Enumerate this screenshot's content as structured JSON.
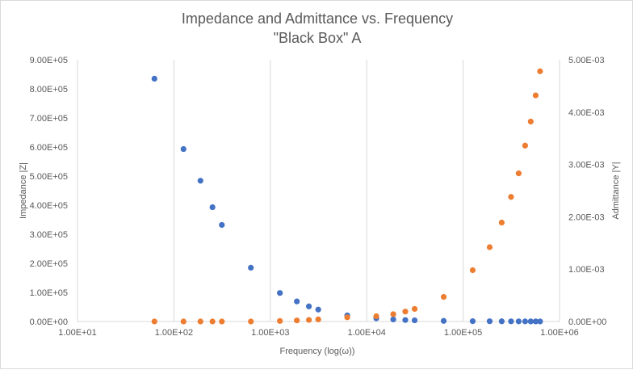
{
  "chart_data": {
    "type": "scatter",
    "title": "Impedance and Admittance vs. Frequency",
    "subtitle": "\"Black Box\" A",
    "xlabel": "Frequency  (log(ω))",
    "ylabel": "Impedance |Z|",
    "y2label": "Admittance |Y|",
    "xscale": "log",
    "xlim": [
      10,
      1000000
    ],
    "ylim": [
      0,
      900000
    ],
    "y2lim": [
      0,
      0.005
    ],
    "xticks": [
      "1.00E+01",
      "1.00E+02",
      "1.00E+03",
      "1.00E+04",
      "1.00E+05",
      "1.00E+06"
    ],
    "yticks": [
      "0.00E+00",
      "1.00E+05",
      "2.00E+05",
      "3.00E+05",
      "4.00E+05",
      "5.00E+05",
      "6.00E+05",
      "7.00E+05",
      "8.00E+05",
      "9.00E+05"
    ],
    "y2ticks": [
      "0.00E+00",
      "1.00E-03",
      "2.00E-03",
      "3.00E-03",
      "4.00E-03",
      "5.00E-03"
    ],
    "grid": "vertical",
    "legend": "none",
    "series": [
      {
        "axis": "left",
        "color": "#4472C4",
        "x": [
          62.8,
          125.7,
          188.5,
          251.3,
          314.2,
          628.3,
          1257,
          1885,
          2513,
          3142,
          6283,
          12566,
          18850,
          25133,
          31416,
          62832,
          125664,
          188496,
          251327,
          314159,
          376991,
          439823,
          502655,
          565487,
          628319
        ],
        "values": [
          835000,
          593000,
          484000,
          393000,
          332000,
          185000,
          98000,
          69000,
          52000,
          41000,
          21000,
          11000,
          7000,
          5000,
          4000,
          2000,
          1000,
          800,
          600,
          500,
          400,
          350,
          300,
          250,
          200
        ]
      },
      {
        "axis": "right",
        "color": "#ED7D31",
        "x": [
          62.8,
          125.7,
          188.5,
          251.3,
          314.2,
          628.3,
          1257,
          1885,
          2513,
          3142,
          6283,
          12566,
          18850,
          25133,
          31416,
          62832,
          125664,
          188496,
          251327,
          314159,
          376991,
          439823,
          502655,
          565487,
          628319
        ],
        "values": [
          0.0,
          0.0,
          0.0,
          0.0,
          0.0,
          0.0,
          1e-05,
          2e-05,
          3e-05,
          4e-05,
          8e-05,
          0.0001,
          0.00014,
          0.00019,
          0.00024,
          0.00047,
          0.00098,
          0.00142,
          0.00189,
          0.00238,
          0.00283,
          0.00336,
          0.00382,
          0.00432,
          0.00478
        ]
      }
    ]
  }
}
